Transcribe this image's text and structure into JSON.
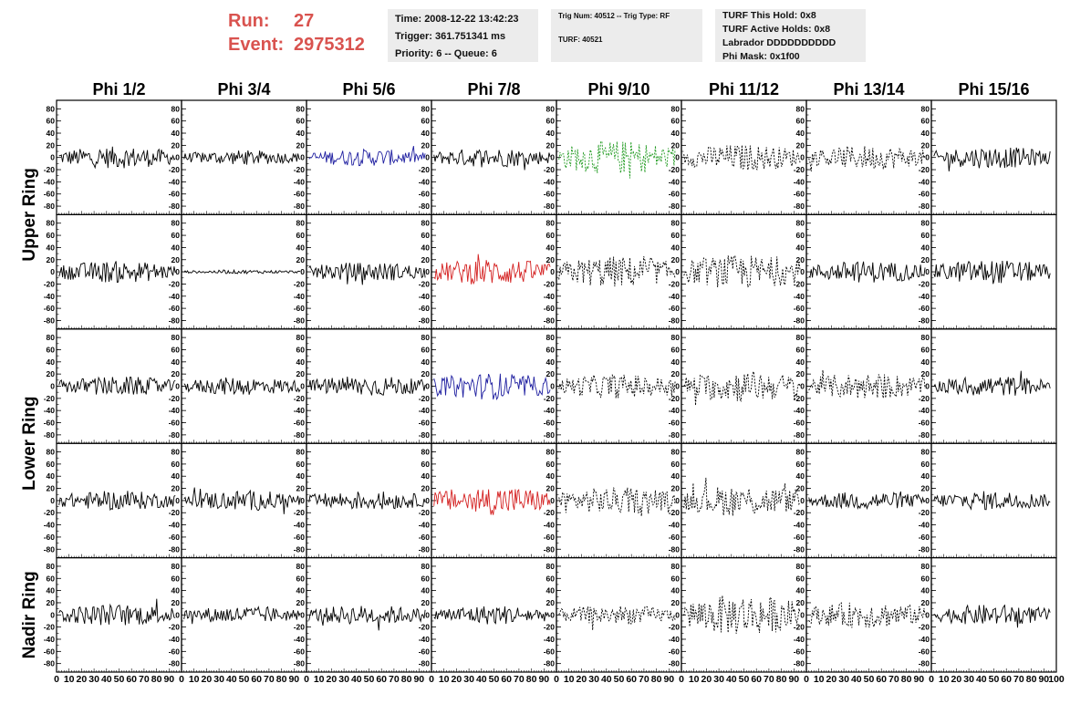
{
  "header": {
    "run_label": "Run:",
    "run_value": "27",
    "event_label": "Event:",
    "event_value": "2975312",
    "time": "Time: 2008-12-22 13:42:23",
    "trigger": "Trigger: 361.751341 ms",
    "priority": "Priority: 6 -- Queue: 6",
    "trig_num": "Trig Num: 40512 -- Trig Type: RF",
    "turf": "TURF: 40521",
    "turf_this_hold": "TURF This Hold: 0x8",
    "turf_active_holds": "TURF Active Holds: 0x8",
    "labrador": "Labrador DDDDDDDDDD",
    "phi_mask": "Phi Mask: 0x1f00"
  },
  "chart_data": {
    "type": "line",
    "title": "",
    "columns": [
      "Phi 1/2",
      "Phi 3/4",
      "Phi 5/6",
      "Phi 7/8",
      "Phi 9/10",
      "Phi 11/12",
      "Phi 13/14",
      "Phi 15/16"
    ],
    "ring_labels": [
      {
        "label": "Upper Ring",
        "rows": [
          0,
          1
        ]
      },
      {
        "label": "Lower Ring",
        "rows": [
          2,
          3
        ]
      },
      {
        "label": "Nadir Ring",
        "rows": [
          4
        ]
      }
    ],
    "xlim": [
      0,
      100
    ],
    "x_ticks": [
      0,
      10,
      20,
      30,
      40,
      50,
      60,
      70,
      80,
      90
    ],
    "x_tick_labels_last": [
      0,
      10,
      20,
      30,
      40,
      50,
      60,
      70,
      80,
      90,
      100
    ],
    "ylim": [
      -85,
      85
    ],
    "y_ticks": [
      -80,
      -60,
      -40,
      -20,
      0,
      20,
      40,
      60,
      80
    ],
    "grid": false,
    "colors": {
      "black": "#000000",
      "blue": "#1f1fa0",
      "red": "#d42020",
      "green": "#1f9a1f"
    },
    "panels": [
      [
        {
          "color": "black",
          "style": "solid",
          "amp": 18
        },
        {
          "color": "black",
          "style": "solid",
          "amp": 12
        },
        {
          "color": "blue",
          "style": "solid",
          "amp": 14
        },
        {
          "color": "black",
          "style": "solid",
          "amp": 16
        },
        {
          "color": "green",
          "style": "dashed",
          "amp": 28
        },
        {
          "color": "black",
          "style": "dashed",
          "amp": 22
        },
        {
          "color": "black",
          "style": "dashed",
          "amp": 20
        },
        {
          "color": "black",
          "style": "solid",
          "amp": 18
        }
      ],
      [
        {
          "color": "black",
          "style": "solid",
          "amp": 18
        },
        {
          "color": "black",
          "style": "solid",
          "amp": 3
        },
        {
          "color": "black",
          "style": "solid",
          "amp": 16
        },
        {
          "color": "red",
          "style": "solid",
          "amp": 22
        },
        {
          "color": "black",
          "style": "dashed",
          "amp": 26
        },
        {
          "color": "black",
          "style": "dashed",
          "amp": 28
        },
        {
          "color": "black",
          "style": "solid",
          "amp": 18
        },
        {
          "color": "black",
          "style": "solid",
          "amp": 20
        }
      ],
      [
        {
          "color": "black",
          "style": "solid",
          "amp": 16
        },
        {
          "color": "black",
          "style": "solid",
          "amp": 15
        },
        {
          "color": "black",
          "style": "solid",
          "amp": 17
        },
        {
          "color": "blue",
          "style": "solid",
          "amp": 22
        },
        {
          "color": "black",
          "style": "dashed",
          "amp": 20
        },
        {
          "color": "black",
          "style": "dashed",
          "amp": 26
        },
        {
          "color": "black",
          "style": "dashed",
          "amp": 22
        },
        {
          "color": "black",
          "style": "solid",
          "amp": 17
        }
      ],
      [
        {
          "color": "black",
          "style": "solid",
          "amp": 16
        },
        {
          "color": "black",
          "style": "solid",
          "amp": 17
        },
        {
          "color": "black",
          "style": "solid",
          "amp": 16
        },
        {
          "color": "red",
          "style": "solid",
          "amp": 24
        },
        {
          "color": "black",
          "style": "dashed",
          "amp": 22
        },
        {
          "color": "black",
          "style": "dashed",
          "amp": 26
        },
        {
          "color": "black",
          "style": "solid",
          "amp": 15
        },
        {
          "color": "black",
          "style": "solid",
          "amp": 16
        }
      ],
      [
        {
          "color": "black",
          "style": "solid",
          "amp": 18
        },
        {
          "color": "black",
          "style": "solid",
          "amp": 14
        },
        {
          "color": "black",
          "style": "solid",
          "amp": 16
        },
        {
          "color": "black",
          "style": "solid",
          "amp": 16
        },
        {
          "color": "black",
          "style": "dashed",
          "amp": 16
        },
        {
          "color": "black",
          "style": "dashed",
          "amp": 34
        },
        {
          "color": "black",
          "style": "dashed",
          "amp": 22
        },
        {
          "color": "black",
          "style": "solid",
          "amp": 17
        }
      ]
    ]
  }
}
